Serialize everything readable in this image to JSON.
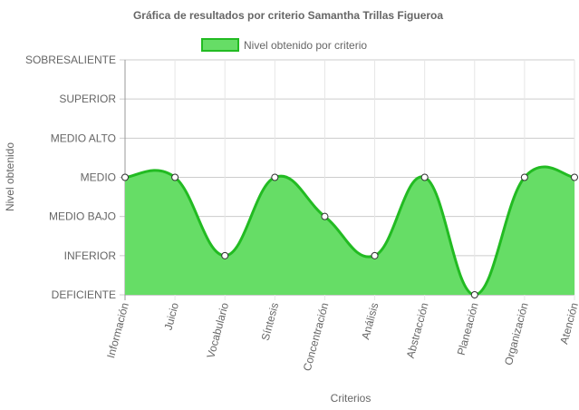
{
  "chart_data": {
    "type": "area",
    "title": "Gráfica de resultados por criterio Samantha Trillas Figueroa",
    "xlabel": "Criterios",
    "ylabel": "Nivel obtenido",
    "levels": [
      "DEFICIENTE",
      "INFERIOR",
      "MEDIO BAJO",
      "MEDIO",
      "MEDIO ALTO",
      "SUPERIOR",
      "SOBRESALIENTE"
    ],
    "categories": [
      "Información",
      "Juicio",
      "Vocabulario",
      "Síntesis",
      "Concentración",
      "Análisis",
      "Abstracción",
      "Planeación",
      "Organización",
      "Atención"
    ],
    "series": [
      {
        "name": "Nivel obtenido por criterio",
        "values": [
          3,
          3,
          1,
          3,
          2,
          1,
          3,
          0,
          3,
          3
        ],
        "color": "#66dd66",
        "stroke": "#22bb22"
      }
    ],
    "ylim": [
      0,
      6
    ],
    "grid": true,
    "legend_position": "top"
  }
}
